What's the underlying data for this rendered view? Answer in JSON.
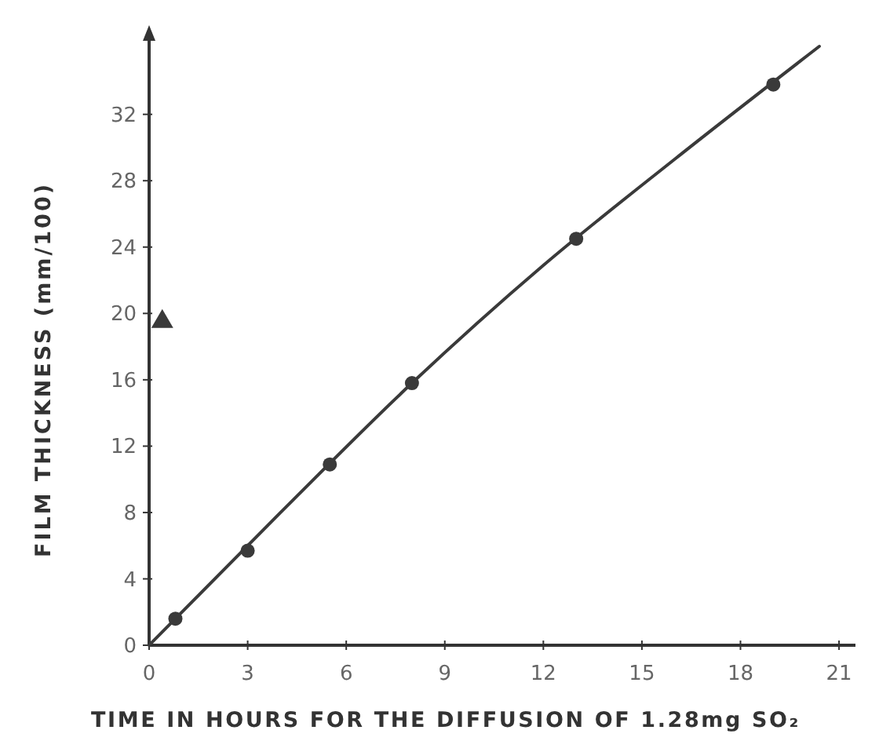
{
  "chart_data": {
    "type": "scatter",
    "xlabel": "TIME IN HOURS FOR THE DIFFUSION OF 1.28mg SO₂",
    "ylabel": "FILM THICKNESS (mm/100)",
    "xlim": [
      0,
      21.5
    ],
    "ylim": [
      0,
      37
    ],
    "xticks": [
      0,
      3,
      6,
      9,
      12,
      15,
      18,
      21
    ],
    "yticks": [
      0,
      4,
      8,
      12,
      16,
      20,
      24,
      28,
      32
    ],
    "grid": false,
    "series": [
      {
        "type": "line",
        "color": "#3a3a3a",
        "marker": "none",
        "line_style": "solid",
        "x": [
          0,
          4,
          8,
          12,
          16,
          20.4
        ],
        "values": [
          0,
          8,
          15.8,
          22.9,
          29.3,
          36.1
        ]
      },
      {
        "color": "#3a3a3a",
        "marker": "circle",
        "x": [
          0.8,
          3,
          5.5,
          8,
          13,
          19
        ],
        "values": [
          1.6,
          5.7,
          10.9,
          15.8,
          24.5,
          33.8
        ]
      },
      {
        "color": "#3a3a3a",
        "marker": "triangle",
        "x": [
          0.4
        ],
        "values": [
          19.6
        ]
      }
    ]
  }
}
